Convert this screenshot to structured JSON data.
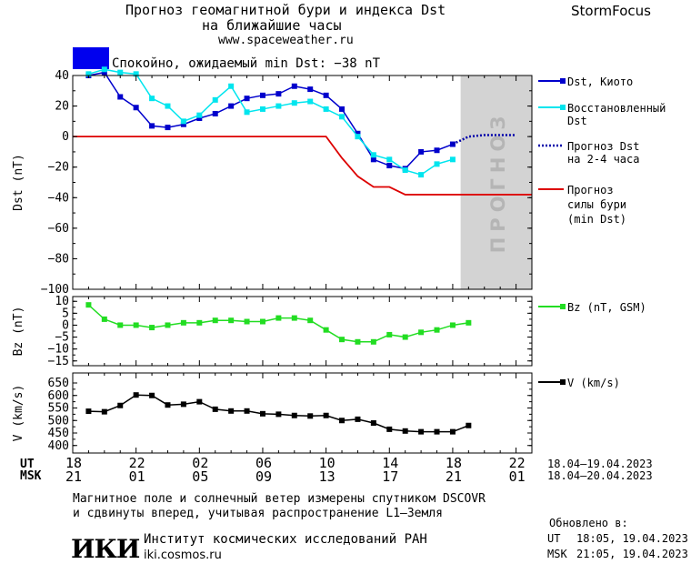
{
  "header": {
    "title_line1": "Прогноз геомагнитной бури и индекса Dst",
    "title_line2": "на ближайшие часы",
    "url": "www.spaceweather.ru",
    "brand": "StormFocus",
    "status_text": "Спокойно, ожидаемый min Dst: −38 nT",
    "status_color": "#0000ee"
  },
  "legend": {
    "dst_kyoto": "Dst, Киото",
    "restored_1": "Восстановленный",
    "restored_2": "Dst",
    "forecast_1": "Прогноз Dst",
    "forecast_2": "на 2-4 часа",
    "storm_1": "Прогноз",
    "storm_2": "силы бури",
    "storm_3": "(min Dst)",
    "bz": "Bz (nT, GSM)",
    "v": "V (km/s)"
  },
  "forecast_band_label": "ПРОГНОЗ",
  "time_axis": {
    "ut_label": "UT",
    "msk_label": "MSK",
    "ut_ticks": [
      "18",
      "22",
      "02",
      "06",
      "10",
      "14",
      "18",
      "22"
    ],
    "msk_ticks": [
      "21",
      "01",
      "05",
      "09",
      "13",
      "17",
      "21",
      "01"
    ],
    "ut_range": "18.04–19.04.2023",
    "msk_range": "18.04–20.04.2023"
  },
  "footer": {
    "note_line1": "Магнитное поле и солнечный ветер измерены спутником DSCOVR",
    "note_line2": "и сдвинуты вперед, учитывая распространение L1–Земля",
    "institute_logo": "ИКИ",
    "institute": "Институт космических исследований РАН",
    "institute_url": "iki.cosmos.ru",
    "updated_label": "Обновлено в:",
    "updated_ut_label": "UT",
    "updated_ut": "18:05, 19.04.2023",
    "updated_msk_label": "MSK",
    "updated_msk": "21:05, 19.04.2023"
  },
  "colors": {
    "dst": "#0000cc",
    "restored": "#00e5ee",
    "forecast": "#0000aa",
    "storm": "#dd0000",
    "bz": "#22dd22",
    "v": "#000000",
    "band": "#d3d3d3"
  },
  "chart_data": [
    {
      "type": "line",
      "panel": "dst",
      "ylabel": "Dst (nT)",
      "xlim": [
        -1,
        28
      ],
      "ylim": [
        -100,
        40
      ],
      "yticks": [
        40,
        20,
        0,
        -20,
        -40,
        -60,
        -80,
        -100
      ],
      "forecast_band_x": [
        23.5,
        28
      ],
      "series": [
        {
          "name": "Dst, Киото",
          "x": [
            0,
            1,
            2,
            3,
            4,
            5,
            6,
            7,
            8,
            9,
            10,
            11,
            12,
            13,
            14,
            15,
            16,
            17,
            18,
            19,
            20,
            21,
            22,
            23
          ],
          "y": [
            40,
            42,
            26,
            19,
            7,
            6,
            8,
            12,
            15,
            20,
            25,
            27,
            28,
            33,
            31,
            27,
            18,
            2,
            -15,
            -19,
            -21,
            -10,
            -9,
            -5
          ]
        },
        {
          "name": "Восстановленный Dst",
          "x": [
            0,
            1,
            2,
            3,
            4,
            5,
            6,
            7,
            8,
            9,
            10,
            11,
            12,
            13,
            14,
            15,
            16,
            17,
            18,
            19,
            20,
            21,
            22,
            23
          ],
          "y": [
            41,
            44,
            42,
            41,
            25,
            20,
            10,
            14,
            24,
            33,
            16,
            18,
            20,
            22,
            23,
            18,
            13,
            0,
            -12,
            -15,
            -22,
            -25,
            -18,
            -15
          ]
        },
        {
          "name": "Прогноз Dst на 2-4 часа",
          "x": [
            23,
            24,
            25,
            26,
            27
          ],
          "y": [
            -5,
            0,
            1,
            1,
            1
          ]
        },
        {
          "name": "Прогноз силы бури (min Dst)",
          "x": [
            -1,
            15,
            16,
            17,
            18,
            19,
            20,
            21,
            22,
            28
          ],
          "y": [
            0,
            0,
            -14,
            -26,
            -33,
            -33,
            -38,
            -38,
            -38,
            -38
          ]
        }
      ]
    },
    {
      "type": "line",
      "panel": "bz",
      "ylabel": "Bz (nT)",
      "xlim": [
        -1,
        28
      ],
      "ylim": [
        -17,
        12
      ],
      "yticks": [
        10,
        5,
        0,
        -5,
        -10,
        -15
      ],
      "series": [
        {
          "name": "Bz (nT, GSM)",
          "x": [
            0,
            1,
            2,
            3,
            4,
            5,
            6,
            7,
            8,
            9,
            10,
            11,
            12,
            13,
            14,
            15,
            16,
            17,
            18,
            19,
            20,
            21,
            22,
            23,
            24
          ],
          "y": [
            8.5,
            2.5,
            0,
            0,
            -1,
            0,
            1,
            1,
            2,
            2,
            1.5,
            1.5,
            3,
            3,
            2,
            -2,
            -6,
            -7,
            -7,
            -4,
            -5,
            -3,
            -2,
            0,
            1
          ]
        }
      ]
    },
    {
      "type": "line",
      "panel": "v",
      "ylabel": "V (km/s)",
      "xlim": [
        -1,
        28
      ],
      "ylim": [
        370,
        690
      ],
      "yticks": [
        650,
        600,
        550,
        500,
        450,
        400
      ],
      "series": [
        {
          "name": "V (km/s)",
          "x": [
            0,
            1,
            2,
            3,
            4,
            5,
            6,
            7,
            8,
            9,
            10,
            11,
            12,
            13,
            14,
            15,
            16,
            17,
            18,
            19,
            20,
            21,
            22,
            23,
            24
          ],
          "y": [
            537,
            535,
            560,
            602,
            600,
            562,
            565,
            575,
            545,
            538,
            538,
            527,
            525,
            520,
            518,
            520,
            500,
            505,
            490,
            465,
            458,
            455,
            455,
            455,
            480
          ]
        }
      ]
    }
  ]
}
